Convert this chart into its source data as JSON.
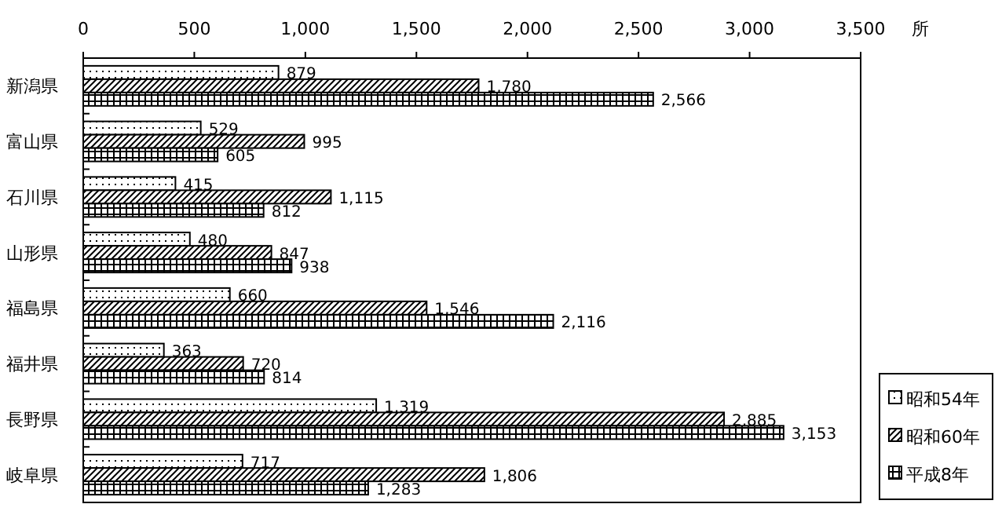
{
  "chart_data": {
    "type": "bar",
    "orientation": "horizontal",
    "xlabel": "所",
    "categories": [
      "新潟県",
      "富山県",
      "石川県",
      "山形県",
      "福島県",
      "福井県",
      "長野県",
      "岐阜県"
    ],
    "series": [
      {
        "name": "昭和54年",
        "color": "#000000",
        "values": [
          879,
          529,
          415,
          480,
          660,
          363,
          1319,
          717
        ],
        "value_labels": [
          "879",
          "529",
          "415",
          "480",
          "660",
          "363",
          "1,319",
          "717"
        ]
      },
      {
        "name": "昭和60年",
        "color": "#000000",
        "values": [
          1780,
          995,
          1115,
          847,
          1546,
          720,
          2885,
          1806
        ],
        "value_labels": [
          "1,780",
          "995",
          "1,115",
          "847",
          "1,546",
          "720",
          "2,885",
          "1,806"
        ]
      },
      {
        "name": "平成8年",
        "color": "#000000",
        "values": [
          2566,
          605,
          812,
          938,
          2116,
          814,
          3153,
          1283
        ],
        "value_labels": [
          "2,566",
          "605",
          "812",
          "938",
          "2,116",
          "814",
          "3,153",
          "1,283"
        ]
      }
    ],
    "xlim": [
      0,
      3500
    ],
    "xticks": [
      0,
      500,
      {
        "value": 1000,
        "label": "1,000"
      },
      {
        "value": 1500,
        "label": "1,500"
      },
      {
        "value": 2000,
        "label": "2,000"
      },
      {
        "value": 2500,
        "label": "2,500"
      },
      {
        "value": 3000,
        "label": "3,000"
      },
      {
        "value": 3500,
        "label": "3,500"
      }
    ],
    "legend": "bottom right"
  }
}
